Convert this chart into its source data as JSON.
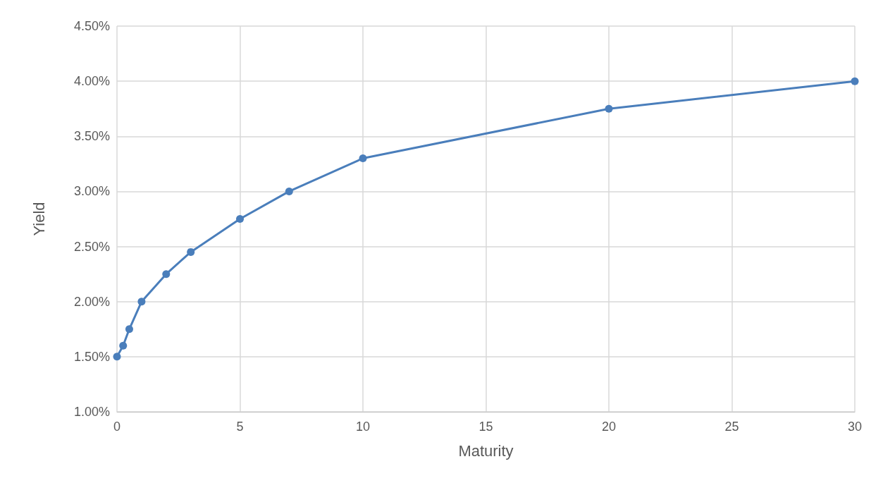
{
  "chart_data": {
    "type": "line",
    "xlabel": "Maturity",
    "ylabel": "Yield",
    "x": [
      0,
      0.25,
      0.5,
      1,
      2,
      3,
      5,
      7,
      10,
      20,
      30
    ],
    "series": [
      {
        "color": "#4a7ebb",
        "values": [
          1.5,
          1.6,
          1.75,
          2.0,
          2.25,
          2.45,
          2.75,
          3.0,
          3.3,
          3.75,
          4.0
        ]
      }
    ],
    "xlim": [
      0,
      30
    ],
    "xticks": [
      0,
      5,
      10,
      15,
      20,
      25,
      30
    ],
    "ylim": [
      1,
      4.5
    ],
    "yticks": [
      {
        "value": 1,
        "label": "1.00%"
      },
      {
        "value": 1.5,
        "label": "1.50%"
      },
      {
        "value": 2,
        "label": "2.00%"
      },
      {
        "value": 2.5,
        "label": "2.50%"
      },
      {
        "value": 3,
        "label": "3.00%"
      },
      {
        "value": 3.5,
        "label": "3.50%"
      },
      {
        "value": 4,
        "label": "4.00%"
      },
      {
        "value": 4.5,
        "label": "4.50%"
      }
    ],
    "grid": true,
    "marker": "circle",
    "line_style": "solid"
  }
}
